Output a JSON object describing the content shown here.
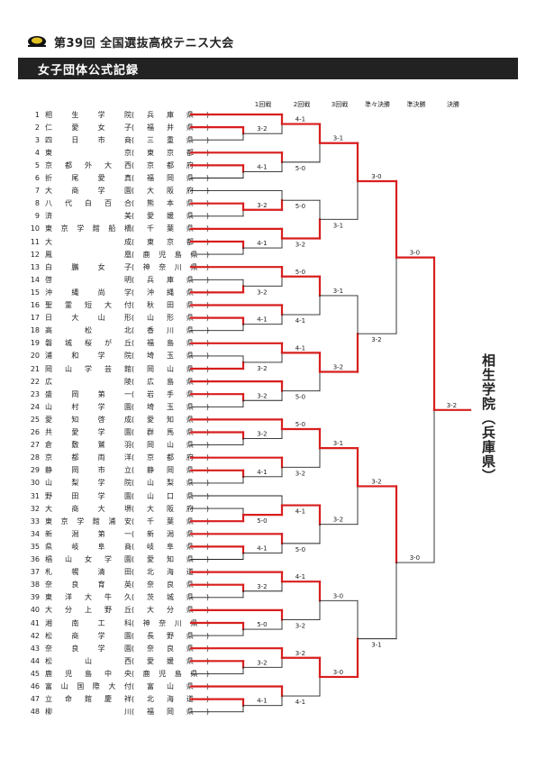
{
  "header": {
    "tournament": "第39回 全国選抜高校テニス大会",
    "section": "女子団体公式記録"
  },
  "rounds": [
    "1回戦",
    "2回戦",
    "3回戦",
    "準々決勝",
    "準決勝",
    "決勝"
  ],
  "teams": [
    {
      "seed": "1",
      "name": "相生学院",
      "pref": "兵庫県"
    },
    {
      "seed": "2",
      "name": "仁愛女子",
      "pref": "福井県"
    },
    {
      "seed": "3",
      "name": "四日市商",
      "pref": "三重県"
    },
    {
      "seed": "4",
      "name": "東京",
      "pref": "東京都"
    },
    {
      "seed": "5",
      "name": "京都外大西",
      "pref": "京都府"
    },
    {
      "seed": "6",
      "name": "折尾愛真",
      "pref": "福岡県"
    },
    {
      "seed": "7",
      "name": "大商学園",
      "pref": "大阪府"
    },
    {
      "seed": "8",
      "name": "八代白百合",
      "pref": "熊本県"
    },
    {
      "seed": "9",
      "name": "済美",
      "pref": "愛媛県"
    },
    {
      "seed": "10",
      "name": "東京学館船橋",
      "pref": "千葉県"
    },
    {
      "seed": "11",
      "name": "大成",
      "pref": "東京都"
    },
    {
      "seed": "12",
      "name": "鳳凰",
      "pref": "鹿児島県"
    },
    {
      "seed": "13",
      "name": "白鵬女子",
      "pref": "神奈川県"
    },
    {
      "seed": "14",
      "name": "啓明",
      "pref": "兵庫県"
    },
    {
      "seed": "15",
      "name": "沖縄尚学",
      "pref": "沖縄県"
    },
    {
      "seed": "16",
      "name": "聖霊短大付",
      "pref": "秋田県"
    },
    {
      "seed": "17",
      "name": "日大山形",
      "pref": "山形県"
    },
    {
      "seed": "18",
      "name": "高松北",
      "pref": "香川県"
    },
    {
      "seed": "19",
      "name": "磐城桜が丘",
      "pref": "福島県"
    },
    {
      "seed": "20",
      "name": "浦和学院",
      "pref": "埼玉県"
    },
    {
      "seed": "21",
      "name": "岡山学芸館",
      "pref": "岡山県"
    },
    {
      "seed": "22",
      "name": "広陵",
      "pref": "広島県"
    },
    {
      "seed": "23",
      "name": "盛岡第一",
      "pref": "岩手県"
    },
    {
      "seed": "24",
      "name": "山村学園",
      "pref": "埼玉県"
    },
    {
      "seed": "25",
      "name": "愛知啓成",
      "pref": "愛知県"
    },
    {
      "seed": "26",
      "name": "共愛学園",
      "pref": "群馬県"
    },
    {
      "seed": "27",
      "name": "倉敷鷲羽",
      "pref": "岡山県"
    },
    {
      "seed": "28",
      "name": "京都両洋",
      "pref": "京都府"
    },
    {
      "seed": "29",
      "name": "静岡市立",
      "pref": "静岡県"
    },
    {
      "seed": "30",
      "name": "山梨学院",
      "pref": "山梨県"
    },
    {
      "seed": "31",
      "name": "野田学園",
      "pref": "山口県"
    },
    {
      "seed": "32",
      "name": "大商大堺",
      "pref": "大阪府"
    },
    {
      "seed": "33",
      "name": "東京学館浦安",
      "pref": "千葉県"
    },
    {
      "seed": "34",
      "name": "新潟第一",
      "pref": "新潟県"
    },
    {
      "seed": "35",
      "name": "県岐阜商",
      "pref": "岐阜県"
    },
    {
      "seed": "36",
      "name": "椙山女学園",
      "pref": "愛知県"
    },
    {
      "seed": "37",
      "name": "札幌清田",
      "pref": "北海道"
    },
    {
      "seed": "38",
      "name": "奈良育英",
      "pref": "奈良県"
    },
    {
      "seed": "39",
      "name": "東洋大牛久",
      "pref": "茨城県"
    },
    {
      "seed": "40",
      "name": "大分上野丘",
      "pref": "大分県"
    },
    {
      "seed": "41",
      "name": "湘南工科",
      "pref": "神奈川県"
    },
    {
      "seed": "42",
      "name": "松商学園",
      "pref": "長野県"
    },
    {
      "seed": "43",
      "name": "奈良学園",
      "pref": "奈良県"
    },
    {
      "seed": "44",
      "name": "松山西",
      "pref": "愛媛県"
    },
    {
      "seed": "45",
      "name": "鹿児島中央",
      "pref": "鹿児島県"
    },
    {
      "seed": "46",
      "name": "富山国際大付",
      "pref": "富山県"
    },
    {
      "seed": "47",
      "name": "立命館慶祥",
      "pref": "北海道"
    },
    {
      "seed": "48",
      "name": "柳川",
      "pref": "福岡県"
    }
  ],
  "bracket": {
    "pairs": [
      [
        2,
        3
      ],
      [
        5,
        6
      ],
      [
        8,
        9
      ],
      [
        11,
        12
      ],
      [
        14,
        15
      ],
      [
        17,
        18
      ],
      [
        20,
        21
      ],
      [
        23,
        24
      ],
      [
        26,
        27
      ],
      [
        29,
        30
      ],
      [
        32,
        33
      ],
      [
        35,
        36
      ],
      [
        38,
        39
      ],
      [
        41,
        42
      ],
      [
        44,
        45
      ],
      [
        47,
        48
      ]
    ],
    "pair_winners": [
      2,
      5,
      8,
      11,
      15,
      17,
      21,
      23,
      26,
      29,
      33,
      35,
      38,
      41,
      44,
      47
    ],
    "pair_scores": [
      "3-2",
      "4-1",
      "3-2",
      "4-1",
      "3-2",
      "4-1",
      "3-2",
      "3-2",
      "3-2",
      "4-1",
      "5-0",
      "4-1",
      "3-2",
      "5-0",
      "3-2",
      "4-1"
    ],
    "r2_winner_top": [
      true,
      false,
      false,
      false,
      true,
      false,
      true,
      false,
      true,
      false,
      false,
      false,
      true,
      false,
      true,
      false
    ],
    "r2_scores": [
      "4-1",
      "5-0",
      "5-0",
      "3-2",
      "5-0",
      "4-1",
      "4-1",
      "5-0",
      "5-0",
      "3-2",
      "4-1",
      "5-0",
      "4-1",
      "3-2",
      "3-2",
      "4-1"
    ],
    "r3_winner_top": [
      true,
      false,
      true,
      true,
      true,
      true,
      true,
      true
    ],
    "r3_scores": [
      "3-1",
      "3-1",
      "3-1",
      "3-2",
      "3-1",
      "3-2",
      "3-0",
      "3-0"
    ],
    "qf_winner_top": [
      true,
      false,
      true,
      false
    ],
    "qf_scores": [
      "3-0",
      "3-2",
      "3-2",
      "3-1"
    ],
    "sf_winner_top": [
      true,
      true
    ],
    "sf_scores": [
      "3-0",
      "3-0"
    ],
    "final_score": "3-2"
  },
  "champion": "相生学院（兵庫県）",
  "colors": {
    "win": "#d81e1e",
    "lose": "#222222",
    "banner": "#222222"
  }
}
